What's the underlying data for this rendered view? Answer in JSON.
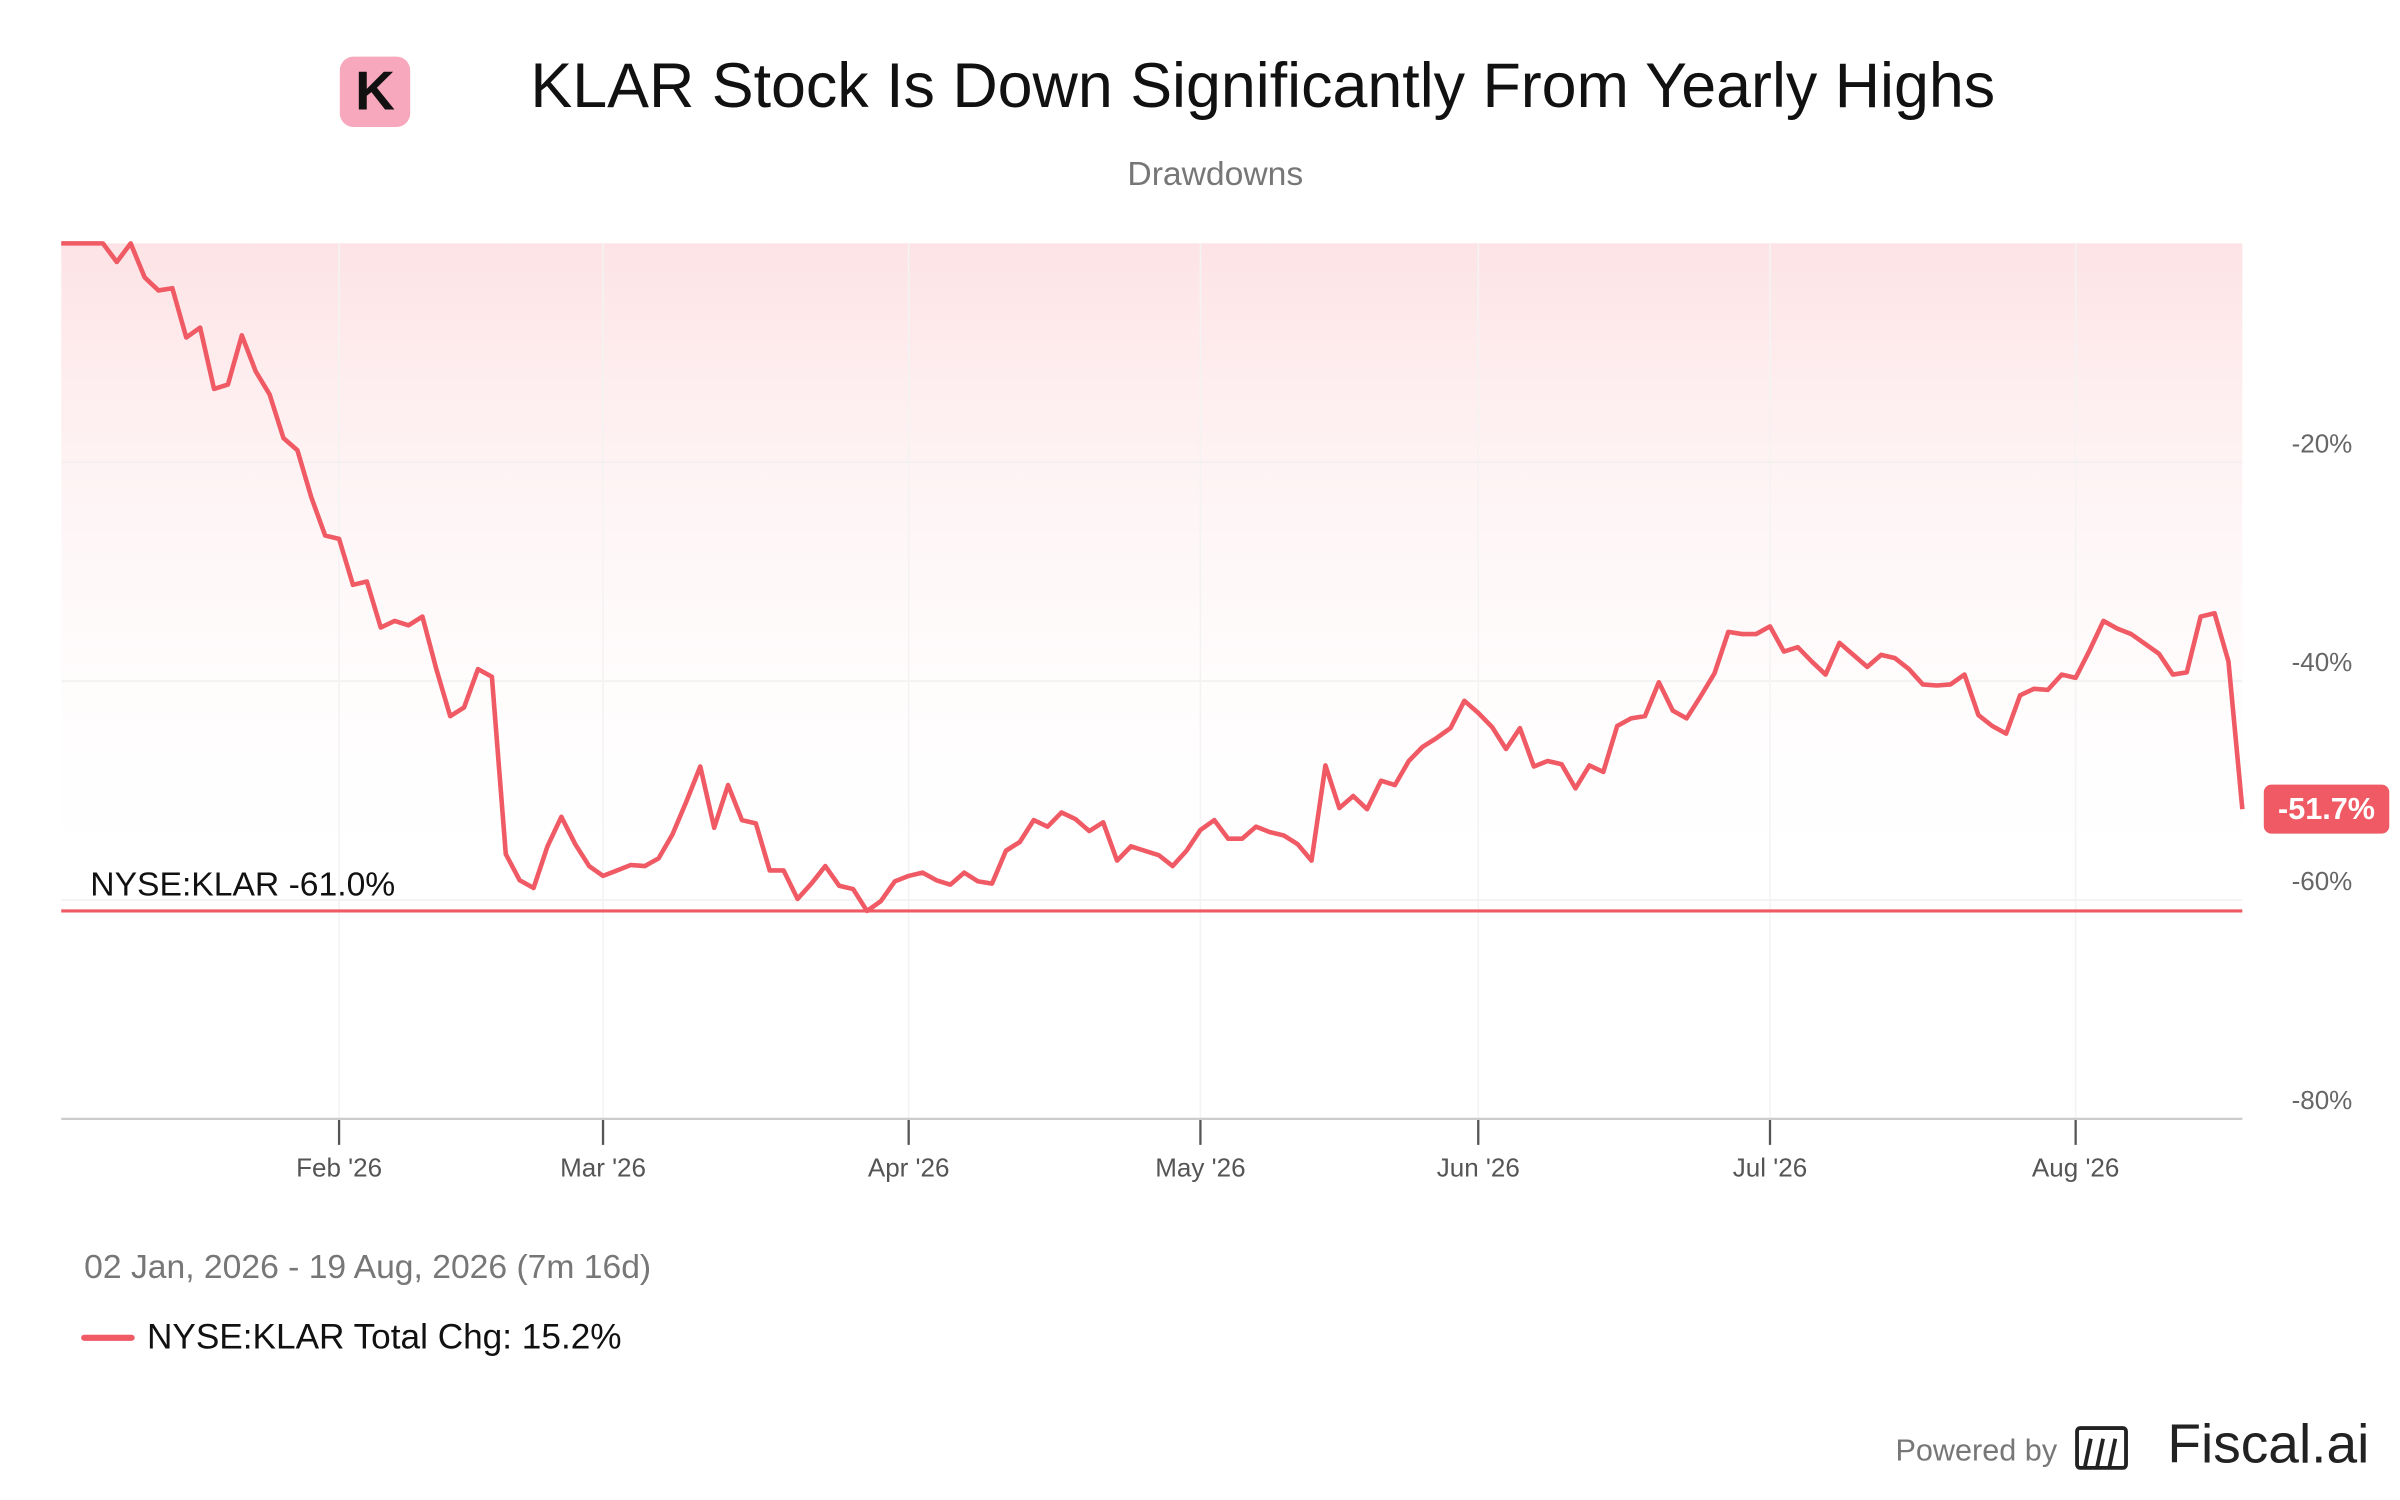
{
  "chart_data": {
    "type": "line",
    "logo": "K",
    "title": "KLAR Stock Is Down Significantly From Yearly Highs",
    "subtitle": "Drawdowns",
    "date_range": "02 Jan, 2026 - 19 Aug, 2026 (7m 16d)",
    "x": [
      "2026-01-02",
      "2026-01-05",
      "2026-01-06",
      "2026-01-07",
      "2026-01-08",
      "2026-01-09",
      "2026-01-12",
      "2026-01-13",
      "2026-01-14",
      "2026-01-15",
      "2026-01-16",
      "2026-01-20",
      "2026-01-21",
      "2026-01-22",
      "2026-01-23",
      "2026-01-26",
      "2026-01-27",
      "2026-01-28",
      "2026-01-29",
      "2026-01-30",
      "2026-02-02",
      "2026-02-03",
      "2026-02-04",
      "2026-02-05",
      "2026-02-06",
      "2026-02-09",
      "2026-02-10",
      "2026-02-11",
      "2026-02-12",
      "2026-02-13",
      "2026-02-17",
      "2026-02-18",
      "2026-02-19",
      "2026-02-20",
      "2026-02-23",
      "2026-02-24",
      "2026-02-25",
      "2026-02-26",
      "2026-02-27",
      "2026-03-02",
      "2026-03-03",
      "2026-03-04",
      "2026-03-05",
      "2026-03-06",
      "2026-03-09",
      "2026-03-10",
      "2026-03-11",
      "2026-03-12",
      "2026-03-13",
      "2026-03-16",
      "2026-03-17",
      "2026-03-18",
      "2026-03-19",
      "2026-03-20",
      "2026-03-23",
      "2026-03-24",
      "2026-03-25",
      "2026-03-26",
      "2026-03-27",
      "2026-03-30",
      "2026-03-31",
      "2026-04-01",
      "2026-04-02",
      "2026-04-06",
      "2026-04-07",
      "2026-04-08",
      "2026-04-09",
      "2026-04-10",
      "2026-04-13",
      "2026-04-14",
      "2026-04-15",
      "2026-04-16",
      "2026-04-17",
      "2026-04-20",
      "2026-04-21",
      "2026-04-22",
      "2026-04-23",
      "2026-04-24",
      "2026-04-27",
      "2026-04-28",
      "2026-04-29",
      "2026-04-30",
      "2026-05-01",
      "2026-05-04",
      "2026-05-05",
      "2026-05-06",
      "2026-05-07",
      "2026-05-08",
      "2026-05-11",
      "2026-05-12",
      "2026-05-13",
      "2026-05-14",
      "2026-05-15",
      "2026-05-18",
      "2026-05-19",
      "2026-05-20",
      "2026-05-21",
      "2026-05-22",
      "2026-05-26",
      "2026-05-27",
      "2026-05-28",
      "2026-05-29",
      "2026-06-01",
      "2026-06-02",
      "2026-06-03",
      "2026-06-04",
      "2026-06-05",
      "2026-06-08",
      "2026-06-09",
      "2026-06-10",
      "2026-06-11",
      "2026-06-12",
      "2026-06-15",
      "2026-06-16",
      "2026-06-17",
      "2026-06-18",
      "2026-06-22",
      "2026-06-23",
      "2026-06-24",
      "2026-06-25",
      "2026-06-26",
      "2026-06-29",
      "2026-06-30",
      "2026-07-01",
      "2026-07-02",
      "2026-07-06",
      "2026-07-07",
      "2026-07-08",
      "2026-07-09",
      "2026-07-10",
      "2026-07-13",
      "2026-07-14",
      "2026-07-15",
      "2026-07-16",
      "2026-07-17",
      "2026-07-20",
      "2026-07-21",
      "2026-07-22",
      "2026-07-23",
      "2026-07-24",
      "2026-07-27",
      "2026-07-28",
      "2026-07-29",
      "2026-07-30",
      "2026-07-31",
      "2026-08-03",
      "2026-08-04",
      "2026-08-05",
      "2026-08-06",
      "2026-08-07",
      "2026-08-10",
      "2026-08-11",
      "2026-08-12",
      "2026-08-13",
      "2026-08-14",
      "2026-08-17",
      "2026-08-18",
      "2026-08-19"
    ],
    "series": [
      {
        "name": "NYSE:KLAR Total Chg: 15.2%",
        "color": "#ef5a64",
        "values": [
          0,
          0,
          0,
          0,
          -1.7,
          0,
          -3.1,
          -4.3,
          -4.1,
          -8.6,
          -7.7,
          -13.3,
          -12.9,
          -8.4,
          -11.7,
          -13.8,
          -17.8,
          -18.9,
          -23.2,
          -26.7,
          -27.0,
          -31.2,
          -30.9,
          -35.1,
          -34.5,
          -34.9,
          -34.1,
          -38.9,
          -43.2,
          -42.4,
          -38.9,
          -39.6,
          -55.8,
          -58.2,
          -58.9,
          -55.1,
          -52.4,
          -54.9,
          -56.9,
          -57.8,
          -57.3,
          -56.8,
          -56.9,
          -56.2,
          -54.0,
          -51.0,
          -47.8,
          -53.4,
          -49.5,
          -52.7,
          -53.0,
          -57.3,
          -57.3,
          -59.9,
          -58.5,
          -56.9,
          -58.7,
          -59.0,
          -61.0,
          -60.1,
          -58.3,
          -57.8,
          -57.5,
          -58.2,
          -58.6,
          -57.5,
          -58.3,
          -58.5,
          -55.5,
          -54.7,
          -52.7,
          -53.3,
          -52.0,
          -52.6,
          -53.7,
          -52.9,
          -56.4,
          -55.1,
          -55.5,
          -55.9,
          -56.9,
          -55.5,
          -53.6,
          -52.7,
          -54.4,
          -54.4,
          -53.3,
          -53.8,
          -54.1,
          -54.9,
          -56.4,
          -47.7,
          -51.6,
          -50.5,
          -51.7,
          -49.1,
          -49.5,
          -47.3,
          -46.0,
          -45.2,
          -44.3,
          -41.8,
          -42.9,
          -44.2,
          -46.2,
          -44.3,
          -47.8,
          -47.3,
          -47.6,
          -49.8,
          -47.7,
          -48.3,
          -44.1,
          -43.4,
          -43.2,
          -40.1,
          -42.7,
          -43.4,
          -41.4,
          -39.3,
          -35.5,
          -35.7,
          -35.7,
          -35.0,
          -37.3,
          -36.9,
          -38.2,
          -39.4,
          -36.5,
          -37.6,
          -38.7,
          -37.6,
          -37.9,
          -38.9,
          -40.3,
          -40.4,
          -40.3,
          -39.4,
          -43.1,
          -44.1,
          -44.8,
          -41.3,
          -40.7,
          -40.8,
          -39.4,
          -39.7,
          -37.2,
          -34.5,
          -35.2,
          -35.7,
          -36.6,
          -37.5,
          -39.4,
          -39.2,
          -34.1,
          -33.8,
          -38.2,
          -51.7
        ]
      }
    ],
    "end_label": "-51.7%",
    "min_line": {
      "label": "NYSE:KLAR -61.0%",
      "value": -61.0
    },
    "ylim": [
      -80,
      0
    ],
    "yticks": [
      {
        "value": -20,
        "label": "-20%"
      },
      {
        "value": -40,
        "label": "-40%"
      },
      {
        "value": -60,
        "label": "-60%"
      },
      {
        "value": -80,
        "label": "-80%"
      }
    ],
    "xticks": [
      {
        "value": "2026-02-02",
        "label": "Feb '26"
      },
      {
        "value": "2026-03-02",
        "label": "Mar '26"
      },
      {
        "value": "2026-04-01",
        "label": "Apr '26"
      },
      {
        "value": "2026-05-01",
        "label": "May '26"
      },
      {
        "value": "2026-06-01",
        "label": "Jun '26"
      },
      {
        "value": "2026-07-01",
        "label": "Jul '26"
      },
      {
        "value": "2026-08-03",
        "label": "Aug '26"
      }
    ],
    "grid": true,
    "footer": {
      "prefix": "Powered by",
      "brand": "Fiscal.ai"
    }
  }
}
